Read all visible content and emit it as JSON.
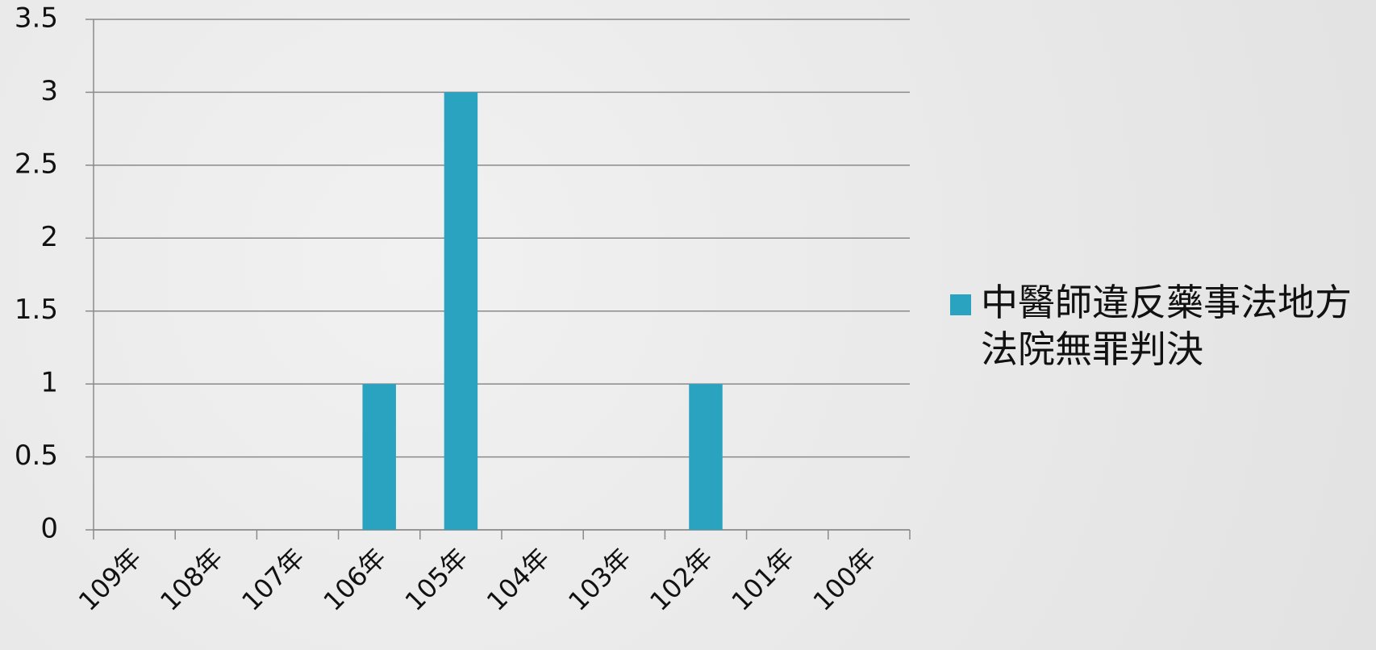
{
  "chart_data": {
    "type": "bar",
    "categories": [
      "109年",
      "108年",
      "107年",
      "106年",
      "105年",
      "104年",
      "103年",
      "102年",
      "101年",
      "100年"
    ],
    "series": [
      {
        "name": "中醫師違反藥事法地方法院無罪判決",
        "color": "#2aa3c0",
        "values": [
          0,
          0,
          0,
          1,
          3,
          0,
          0,
          1,
          0,
          0
        ]
      }
    ],
    "ylim": [
      0,
      3.5
    ],
    "yticks": [
      0,
      0.5,
      1,
      1.5,
      2,
      2.5,
      3,
      3.5
    ],
    "grid": true,
    "legend": "right"
  }
}
